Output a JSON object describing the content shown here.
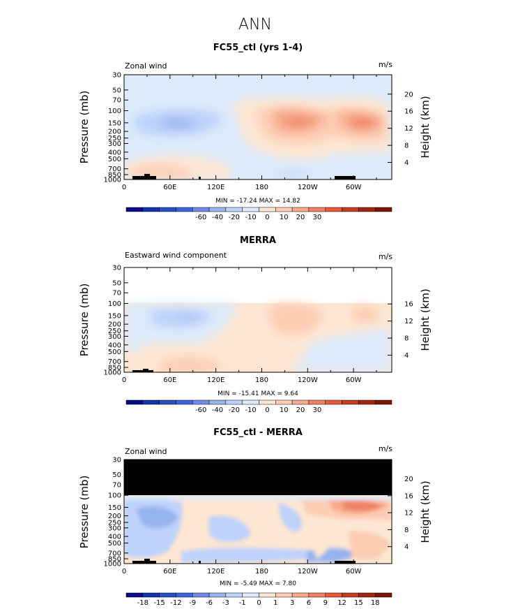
{
  "figure_title": "ANN",
  "colors": {
    "palette": [
      "#0a0a8c",
      "#1432b4",
      "#2850c8",
      "#3c64dc",
      "#6e8ce6",
      "#96b4f0",
      "#bed2fa",
      "#dceafa",
      "#fde6d2",
      "#fccdb4",
      "#f8aa8c",
      "#f08264",
      "#e65a3c",
      "#c83c1e",
      "#a0280f",
      "#781400"
    ],
    "mask": "#000000",
    "topo": "#000000"
  },
  "chart_data": [
    {
      "id": "model",
      "type": "contour",
      "title": "FC55_ctl (yrs 1-4)",
      "left_label": "Zonal wind",
      "units_label": "m/s",
      "ylabel": "Pressure (mb)",
      "right_label": "Height (km)",
      "pressure_ticks": [
        "30",
        "50",
        "70",
        "100",
        "150",
        "200",
        "250",
        "300",
        "400",
        "500",
        "700",
        "850",
        "1000"
      ],
      "height_ticks": [
        "20",
        "16",
        "12",
        "8",
        "4"
      ],
      "longitude_ticks": [
        "0",
        "60E",
        "120E",
        "180",
        "120W",
        "60W"
      ],
      "min_max_text": "MIN = -17.24   MAX =  14.82",
      "colorbar_labels": [
        "-60",
        "-40",
        "-20",
        "-10",
        "0",
        "10",
        "20",
        "30"
      ],
      "data_top_pressure": 30,
      "field": [
        {
          "lon": 80,
          "p": 170,
          "value": -8
        },
        {
          "lon": 250,
          "p": 150,
          "value": 12
        },
        {
          "lon": 325,
          "p": 150,
          "value": 12
        },
        {
          "lon": 290,
          "p": 200,
          "value": 6
        },
        {
          "lon": 40,
          "p": 750,
          "value": 4
        }
      ]
    },
    {
      "id": "obs",
      "type": "contour",
      "title": "MERRA",
      "left_label": "Eastward wind component",
      "units_label": "m/s",
      "ylabel": "Pressure (mb)",
      "right_label": "Height (km)",
      "pressure_ticks": [
        "30",
        "50",
        "70",
        "100",
        "150",
        "200",
        "250",
        "300",
        "400",
        "500",
        "700",
        "850",
        "1000"
      ],
      "height_ticks": [
        "16",
        "12",
        "8",
        "4"
      ],
      "longitude_ticks": [
        "0",
        "60E",
        "120E",
        "180",
        "120W",
        "60W"
      ],
      "min_max_text": "MIN = -15.41   MAX =   9.64",
      "colorbar_labels": [
        "-60",
        "-40",
        "-20",
        "-10",
        "0",
        "10",
        "20",
        "30"
      ],
      "data_top_pressure": 100,
      "field": [
        {
          "lon": 90,
          "p": 150,
          "value": -6
        },
        {
          "lon": 245,
          "p": 150,
          "value": 8
        },
        {
          "lon": 330,
          "p": 140,
          "value": 6
        }
      ]
    },
    {
      "id": "diff",
      "type": "contour",
      "title": "FC55_ctl - MERRA",
      "left_label": "Zonal wind",
      "units_label": "m/s",
      "ylabel": "Pressure (mb)",
      "right_label": "Height (km)",
      "pressure_ticks": [
        "30",
        "50",
        "70",
        "100",
        "150",
        "200",
        "250",
        "300",
        "400",
        "500",
        "700",
        "850",
        "1000"
      ],
      "height_ticks": [
        "20",
        "16",
        "12",
        "8",
        "4"
      ],
      "longitude_ticks": [
        "0",
        "60E",
        "120E",
        "180",
        "120W",
        "60W"
      ],
      "min_max_text": "MIN =  -5.49   MAX =   7.80",
      "colorbar_labels": [
        "-18",
        "-15",
        "-12",
        "-9",
        "-6",
        "-3",
        "-1",
        "0",
        "1",
        "3",
        "6",
        "9",
        "12",
        "15",
        "18"
      ],
      "data_top_pressure": 100,
      "field": [
        {
          "lon": 40,
          "p": 200,
          "value": -4
        },
        {
          "lon": 330,
          "p": 150,
          "value": 6
        },
        {
          "lon": 250,
          "p": 120,
          "value": 3
        }
      ]
    }
  ]
}
